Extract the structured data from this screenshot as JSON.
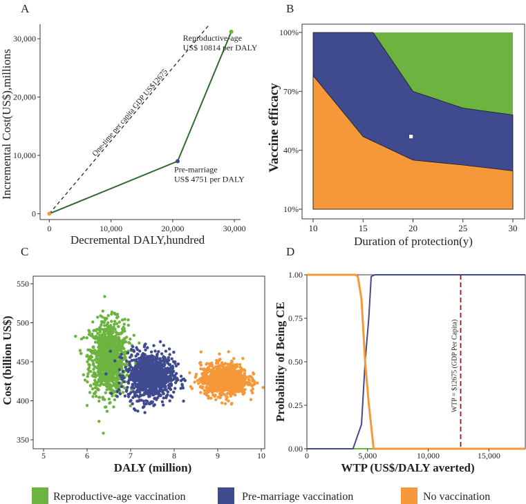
{
  "colors": {
    "reproductive": "#6db33f",
    "premarriage": "#3f4a8f",
    "novacc": "#f5983a",
    "line": "#2d6a2d",
    "wtp_line": "#8b1a1a"
  },
  "legend": [
    {
      "label": "Reproductive-age vaccination",
      "color": "#6db33f"
    },
    {
      "label": "Pre-marriage vaccination",
      "color": "#3f4a8f"
    },
    {
      "label": "No vaccination",
      "color": "#f5983a"
    }
  ],
  "chart_data": [
    {
      "panel": "A",
      "type": "line",
      "xlabel": "Decremental DALY,hundred",
      "ylabel": "Incremental Cost(US$),millions",
      "xlim": [
        -1500,
        31000
      ],
      "ylim": [
        -1000,
        32500
      ],
      "xticks": [
        0,
        10000,
        20000,
        30000
      ],
      "xtick_labels": [
        "0",
        "10,000",
        "20,000",
        "30,000"
      ],
      "yticks": [
        0,
        10000,
        20000,
        30000
      ],
      "ytick_labels": [
        "0",
        "10,000",
        "20,000",
        "30,000"
      ],
      "frontier": [
        {
          "name": "No vaccination",
          "x": 0,
          "y": 0
        },
        {
          "name": "Pre-marriage",
          "x": 20800,
          "y": 9000
        },
        {
          "name": "Reproductive-age",
          "x": 29500,
          "y": 31200
        }
      ],
      "threshold_line": {
        "label": "One-time per capita GDP US$12675",
        "from": [
          0,
          0
        ],
        "to": [
          26000,
          32500
        ]
      },
      "annotations": [
        {
          "point": "Pre-marriage",
          "line1": "Pre-marriage",
          "line2": "US$ 4751 per DALY"
        },
        {
          "point": "Reproductive-age",
          "line1": "Reproductive-age",
          "line2": "US$ 10814 per DALY"
        }
      ]
    },
    {
      "panel": "B",
      "type": "area",
      "xlabel": "Duration of protection(y)",
      "ylabel": "Vaccine efficacy",
      "xlim": [
        10,
        30
      ],
      "ylim": [
        10,
        100
      ],
      "xticks": [
        10,
        15,
        20,
        25,
        30
      ],
      "ytick_values": [
        10,
        40,
        70,
        100
      ],
      "ytick_labels": [
        "10%",
        "40%",
        "70%",
        "100%"
      ],
      "lower_boundary": {
        "x": [
          10,
          15,
          20,
          25,
          30
        ],
        "y": [
          78,
          47,
          35,
          32.5,
          29.5
        ]
      },
      "upper_boundary": {
        "x": [
          10,
          16,
          20,
          25,
          30
        ],
        "y": [
          100,
          100,
          70,
          61.5,
          58
        ]
      },
      "marker": {
        "x": 19.8,
        "y": 47
      },
      "regions": [
        "No vaccination (below lower boundary)",
        "Pre-marriage vaccination (between)",
        "Reproductive-age vaccination (above upper boundary)"
      ]
    },
    {
      "panel": "C",
      "type": "scatter",
      "xlabel": "DALY (million)",
      "ylabel": "Cost (billion US$)",
      "xlim": [
        5,
        10
      ],
      "ylim": [
        340,
        560
      ],
      "xticks": [
        5,
        6,
        7,
        8,
        9,
        10
      ],
      "yticks": [
        350,
        400,
        450,
        500,
        550
      ],
      "series": [
        {
          "name": "Reproductive-age vaccination",
          "center": [
            6.5,
            455
          ],
          "spread": [
            0.22,
            24
          ],
          "n": 1000
        },
        {
          "name": "Pre-marriage vaccination",
          "center": [
            7.45,
            432
          ],
          "spread": [
            0.27,
            15
          ],
          "n": 1000
        },
        {
          "name": "No vaccination",
          "center": [
            9.15,
            427
          ],
          "spread": [
            0.27,
            10
          ],
          "n": 1000
        }
      ]
    },
    {
      "panel": "D",
      "type": "line",
      "xlabel": "WTP (US$/DALY averted)",
      "ylabel": "Probability of Being CE",
      "xlim": [
        0,
        18000
      ],
      "ylim": [
        0,
        1
      ],
      "xticks": [
        0,
        5000,
        10000,
        15000
      ],
      "xtick_labels": [
        "0",
        "5,000",
        "10,000",
        "15,000"
      ],
      "yticks": [
        0,
        0.25,
        0.5,
        0.75,
        1
      ],
      "ytick_labels": [
        "0.00",
        "0.25",
        "0.50",
        "0.75",
        "1.00"
      ],
      "series": [
        {
          "name": "No vaccination",
          "x": [
            0,
            4000,
            4200,
            4500,
            4800,
            5100,
            5500,
            18000
          ],
          "y": [
            1,
            1,
            0.99,
            0.86,
            0.5,
            0.26,
            0,
            0
          ]
        },
        {
          "name": "Pre-marriage vaccination",
          "x": [
            0,
            3800,
            4500,
            4800,
            5100,
            5300,
            5600,
            18000
          ],
          "y": [
            0,
            0,
            0.14,
            0.5,
            0.75,
            0.99,
            1,
            1
          ]
        },
        {
          "name": "Reproductive-age vaccination",
          "x": [
            0,
            18000
          ],
          "y": [
            0,
            0
          ]
        }
      ],
      "wtp_line": {
        "x": 12675,
        "label": "WTP = $12675 (GDP Per Capita)"
      }
    }
  ],
  "panel_labels": [
    "A",
    "B",
    "C",
    "D"
  ]
}
